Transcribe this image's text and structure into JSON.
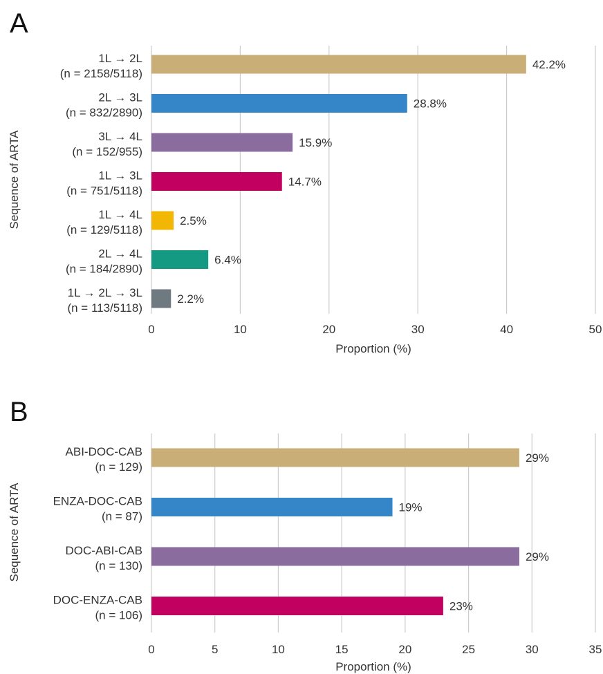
{
  "panels": [
    {
      "letter": "A"
    },
    {
      "letter": "B"
    }
  ],
  "chart_data": [
    {
      "type": "bar",
      "orientation": "horizontal",
      "categories": [
        [
          "1L → 2L",
          "(n = 2158/5118)"
        ],
        [
          "2L → 3L",
          "(n = 832/2890)"
        ],
        [
          "3L → 4L",
          "(n = 152/955)"
        ],
        [
          "1L → 3L",
          "(n = 751/5118)"
        ],
        [
          "1L → 4L",
          "(n = 129/5118)"
        ],
        [
          "2L → 4L",
          "(n = 184/2890)"
        ],
        [
          "1L → 2L → 3L",
          "(n = 113/5118)"
        ]
      ],
      "values": [
        42.2,
        28.8,
        15.9,
        14.7,
        2.5,
        6.4,
        2.2
      ],
      "value_labels": [
        "42.2%",
        "28.8%",
        "15.9%",
        "14.7%",
        "2.5%",
        "6.4%",
        "2.2%"
      ],
      "colors": [
        "#c9ae78",
        "#3586c8",
        "#8a6c9f",
        "#c2005f",
        "#f2b705",
        "#149a83",
        "#6f7a80"
      ],
      "xlabel": "Proportion (%)",
      "ylabel": "Sequence of ARTA",
      "xlim": [
        0,
        50
      ],
      "xticks": [
        0,
        10,
        20,
        30,
        40,
        50
      ],
      "grid": "vertical"
    },
    {
      "type": "bar",
      "orientation": "horizontal",
      "categories": [
        [
          "ABI-DOC-CAB",
          "(n = 129)"
        ],
        [
          "ENZA-DOC-CAB",
          "(n = 87)"
        ],
        [
          "DOC-ABI-CAB",
          "(n = 130)"
        ],
        [
          "DOC-ENZA-CAB",
          "(n = 106)"
        ]
      ],
      "values": [
        29,
        19,
        29,
        23
      ],
      "value_labels": [
        "29%",
        "19%",
        "29%",
        "23%"
      ],
      "colors": [
        "#c9ae78",
        "#3586c8",
        "#8a6c9f",
        "#c2005f"
      ],
      "xlabel": "Proportion (%)",
      "ylabel": "Sequence of ARTA",
      "xlim": [
        0,
        35
      ],
      "xticks": [
        0,
        5,
        10,
        15,
        20,
        25,
        30,
        35
      ],
      "grid": "vertical"
    }
  ]
}
